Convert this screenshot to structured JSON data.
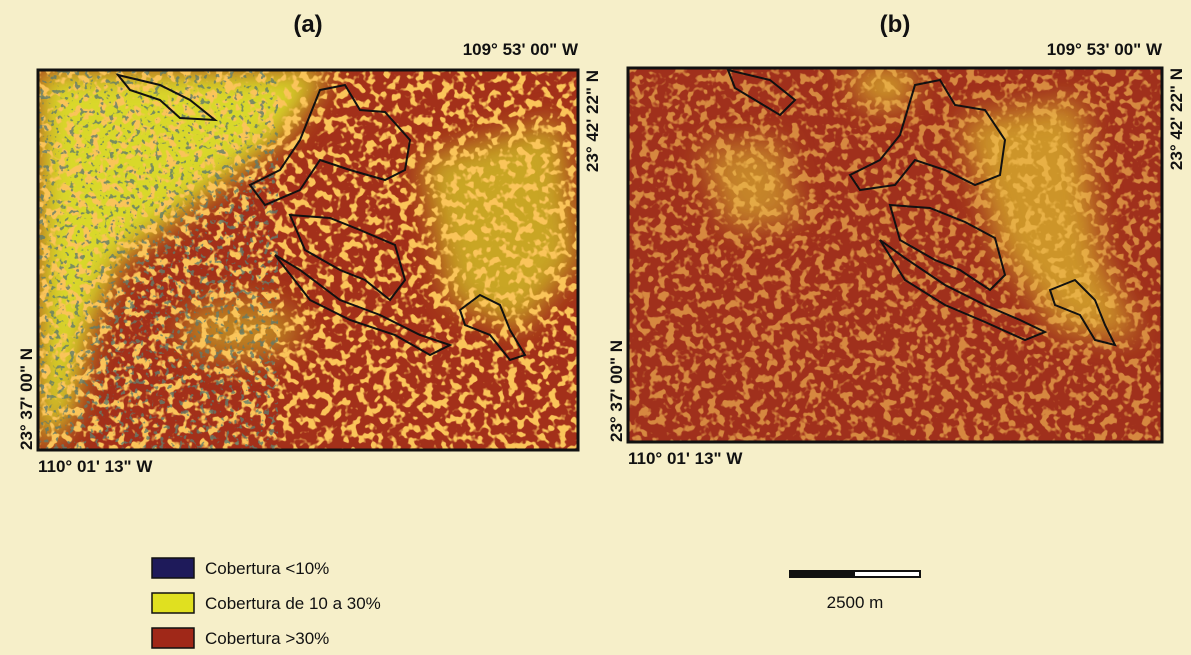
{
  "panels": [
    {
      "label": "(a)",
      "lon_top_right": "109° 53' 00\" W",
      "lat_right": "23° 42' 22\" N",
      "lat_left": "23° 37' 00\" N",
      "lon_bottom_left": "110° 01' 13\" W"
    },
    {
      "label": "(b)",
      "lon_top_right": "109° 53' 00\" W",
      "lat_right": "23° 42' 22\" N",
      "lat_left": "23° 37' 00\" N",
      "lon_bottom_left": "110° 01' 13\" W"
    }
  ],
  "legend": {
    "items": [
      {
        "label": "Cobertura <10%",
        "color": "#1e1a5a"
      },
      {
        "label": "Cobertura de 10 a 30%",
        "color": "#e0e020"
      },
      {
        "label": "Cobertura >30%",
        "color": "#a02818"
      }
    ]
  },
  "scale_bar": {
    "label": "2500 m"
  }
}
